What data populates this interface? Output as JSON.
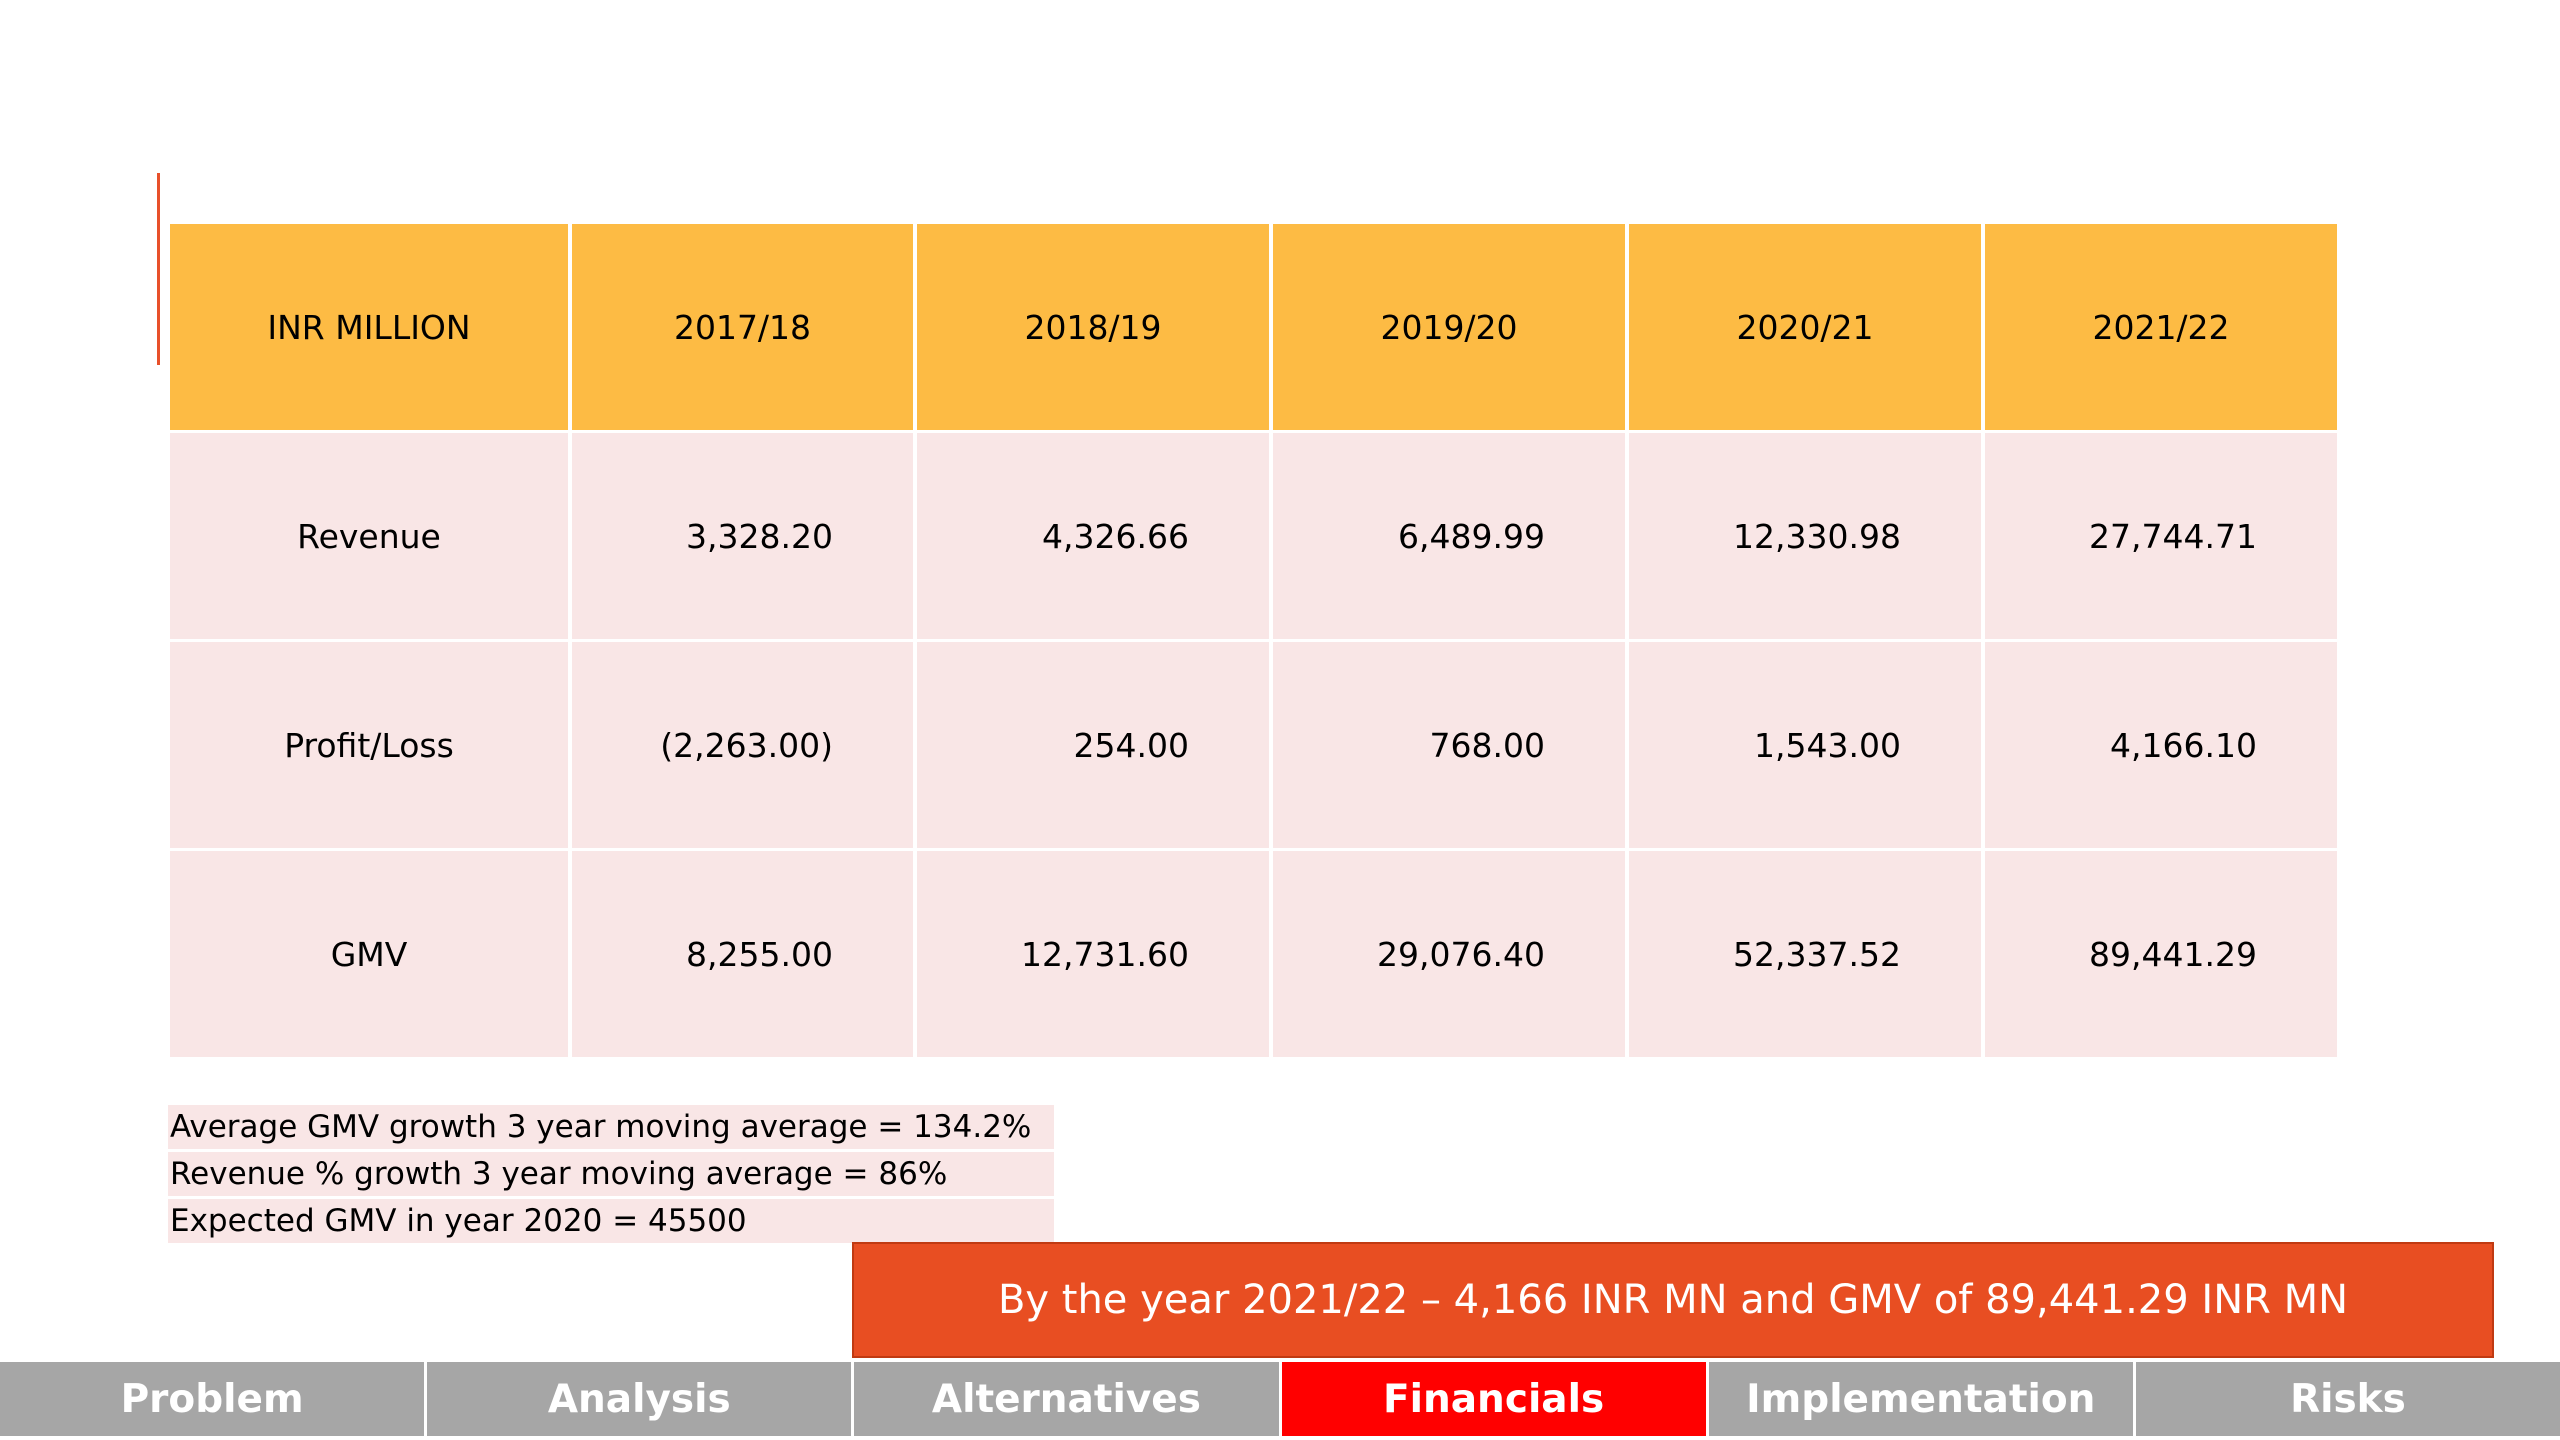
{
  "table": {
    "header": [
      "INR MILLION",
      "2017/18",
      "2018/19",
      "2019/20",
      "2020/21",
      "2021/22"
    ],
    "rows": [
      {
        "label": "Revenue",
        "values": [
          "3,328.20",
          "4,326.66",
          "6,489.99",
          "12,330.98",
          "27,744.71"
        ]
      },
      {
        "label": "Profit/Loss",
        "values": [
          "(2,263.00)",
          "254.00",
          "768.00",
          "1,543.00",
          "4,166.10"
        ]
      },
      {
        "label": "GMV",
        "values": [
          "8,255.00",
          "12,731.60",
          "29,076.40",
          "52,337.52",
          "89,441.29"
        ]
      }
    ]
  },
  "notes": [
    "Average GMV growth 3 year moving average = 134.2%",
    "Revenue % growth 3 year moving average = 86%",
    "Expected GMV in year 2020 = 45500"
  ],
  "callout": "By the year 2021/22 – 4,166 INR MN and GMV of 89,441.29 INR MN",
  "nav": {
    "tabs": [
      "Problem",
      "Analysis",
      "Alternatives",
      "Financials",
      "Implementation",
      "Risks"
    ],
    "active": "Financials"
  },
  "colors": {
    "header_fill": "#fdbb44",
    "row_fill": "#f9e6e6",
    "callout_fill": "#e84e22",
    "nav_fill": "#a6a6a6",
    "nav_active": "#ff0000"
  }
}
